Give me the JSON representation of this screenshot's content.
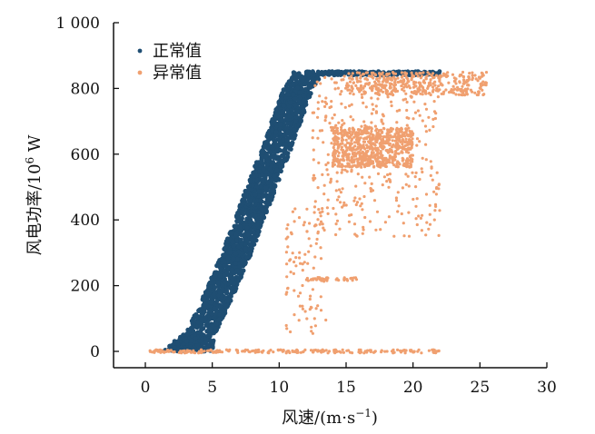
{
  "chart_data": {
    "type": "scatter",
    "xlabel": "风速/(m·s",
    "xlabel_sup": "−1",
    "xlabel_tail": ")",
    "ylabel": "风电功率/10",
    "ylabel_sup": "6",
    "ylabel_tail": " W",
    "xlim": [
      -2.5,
      30
    ],
    "ylim": [
      -50,
      1000
    ],
    "xticks": [
      0,
      5,
      10,
      15,
      20,
      25,
      30
    ],
    "xtick_labels": [
      "0",
      "5",
      "10",
      "15",
      "20",
      "25",
      "30"
    ],
    "yticks": [
      0,
      200,
      400,
      600,
      800,
      1000
    ],
    "ytick_labels": [
      "0",
      "200",
      "400",
      "600",
      "800",
      "1 000"
    ],
    "grid": false,
    "legend_position": "top-left",
    "series": [
      {
        "name": "正常值",
        "color": "#1f4e73",
        "curve": [
          [
            2.5,
            0
          ],
          [
            4.4,
            60
          ],
          [
            6.0,
            200
          ],
          [
            7.5,
            350
          ],
          [
            8.5,
            460
          ],
          [
            10.2,
            640
          ],
          [
            11.5,
            790
          ],
          [
            12.4,
            850
          ],
          [
            22.0,
            850
          ]
        ],
        "band_lower_offset": 1.3,
        "band_upper_offset": 0.9
      },
      {
        "name": "异常值",
        "color": "#f0a070",
        "clusters": [
          {
            "x": [
              0.3,
              22.0
            ],
            "y": [
              -5,
              5
            ],
            "density": "line-near-zero"
          },
          {
            "x": [
              14.0,
              20.0
            ],
            "y": [
              560,
              680
            ],
            "density": "high"
          },
          {
            "x": [
              12.5,
              22.0
            ],
            "y": [
              350,
              840
            ],
            "density": "medium"
          },
          {
            "x": [
              15.0,
              25.5
            ],
            "y": [
              780,
              850
            ],
            "density": "medium"
          },
          {
            "x": [
              10.5,
              13.5
            ],
            "y": [
              50,
              450
            ],
            "density": "low"
          },
          {
            "x": [
              12.0,
              16.0
            ],
            "y": [
              215,
              225
            ],
            "density": "line"
          }
        ]
      }
    ]
  }
}
